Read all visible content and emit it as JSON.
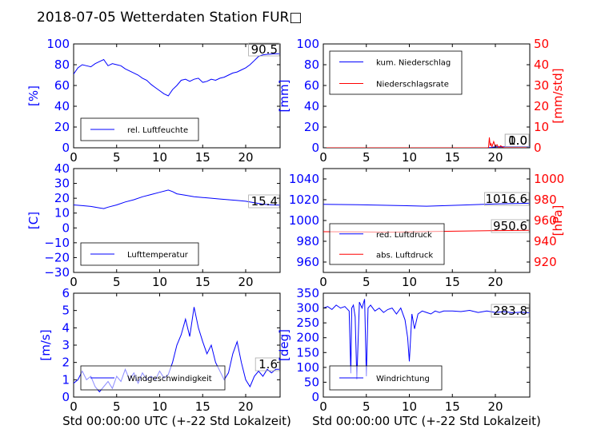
{
  "title": "2018-07-05 Wetterdaten Station FUR□",
  "xlabel": "Std 00:00:00 UTC (+-22 Std Lokalzeit)",
  "colors": {
    "blue": "#0000ff",
    "red": "#ff0000",
    "black": "#000000"
  },
  "chart_data": [
    {
      "type": "line",
      "panel": "humidity",
      "ylabel": "[%]",
      "xlim": [
        0,
        24
      ],
      "ylim": [
        0,
        100
      ],
      "xticks": [
        "0",
        "5",
        "10",
        "15",
        "20"
      ],
      "yticks": [
        "0",
        "20",
        "40",
        "60",
        "80",
        "100"
      ],
      "last_value": "90.5",
      "legend_placement": "lower-left",
      "series": [
        {
          "name": "rel. Luftfeuchte",
          "color": "#0000ff",
          "x": [
            0,
            0.5,
            1,
            1.5,
            2,
            2.5,
            3,
            3.5,
            4,
            4.5,
            5,
            5.5,
            6,
            6.5,
            7,
            7.5,
            8,
            8.5,
            9,
            9.5,
            10,
            10.5,
            11,
            11.5,
            12,
            12.5,
            13,
            13.5,
            14,
            14.5,
            15,
            15.5,
            16,
            16.5,
            17,
            17.5,
            18,
            18.5,
            19,
            19.5,
            20,
            20.5,
            21,
            21.5,
            22,
            22.5,
            23,
            23.5,
            24
          ],
          "y": [
            71,
            77,
            80,
            79,
            78,
            81,
            83,
            85,
            79,
            81,
            80,
            79,
            76,
            74,
            72,
            70,
            67,
            65,
            61,
            58,
            55,
            52,
            50,
            56,
            60,
            65,
            66,
            64,
            66,
            67,
            63,
            64,
            66,
            65,
            67,
            68,
            70,
            72,
            73,
            75,
            77,
            80,
            84,
            88,
            89.5,
            90,
            90.3,
            90.5,
            90.5
          ]
        }
      ]
    },
    {
      "type": "line",
      "panel": "precipitation",
      "ylabel": "[mm]",
      "ylabel_right": "[mm/std]",
      "xlim": [
        0,
        24
      ],
      "ylim": [
        0,
        100
      ],
      "ylim_right": [
        0,
        50
      ],
      "xticks": [
        "0",
        "5",
        "10",
        "15",
        "20"
      ],
      "yticks": [
        "0",
        "20",
        "40",
        "60",
        "80",
        "100"
      ],
      "yticks_right": [
        "0",
        "10",
        "20",
        "30",
        "40",
        "50"
      ],
      "last_values": [
        "0.0",
        "1.0"
      ],
      "legend_placement": "upper-left",
      "series": [
        {
          "name": "kum. Niederschlag",
          "color": "#0000ff",
          "axis": "left",
          "x": [
            0,
            19,
            19.5,
            20,
            24
          ],
          "y": [
            0,
            0,
            0.4,
            0.9,
            1.0
          ]
        },
        {
          "name": "Niederschlagsrate",
          "color": "#ff0000",
          "axis": "right",
          "x": [
            0,
            19.2,
            19.3,
            19.4,
            19.5,
            19.6,
            19.8,
            20.0,
            20.2,
            20.4,
            20.6,
            21,
            22,
            23,
            24
          ],
          "y": [
            0,
            0,
            5,
            1,
            2,
            0.5,
            3,
            0.5,
            1.5,
            0,
            1.0,
            0,
            0,
            0,
            0
          ]
        }
      ]
    },
    {
      "type": "line",
      "panel": "temperature",
      "ylabel": "[C]",
      "xlim": [
        0,
        24
      ],
      "ylim": [
        -30,
        40
      ],
      "xticks": [
        "0",
        "5",
        "10",
        "15",
        "20"
      ],
      "yticks": [
        "−30",
        "−20",
        "−10",
        "0",
        "10",
        "20",
        "30",
        "40"
      ],
      "last_value": "15.4",
      "legend_placement": "lower-left",
      "series": [
        {
          "name": "Lufttemperatur",
          "color": "#0000ff",
          "x": [
            0,
            1,
            2,
            3,
            3.5,
            4,
            5,
            6,
            7,
            8,
            9,
            10,
            11,
            11.5,
            12,
            13,
            14,
            15,
            16,
            17,
            18,
            19,
            20,
            21,
            22,
            23,
            24
          ],
          "y": [
            15.5,
            15,
            14.5,
            13.5,
            13,
            14,
            15.5,
            17.5,
            19,
            21,
            22.5,
            24,
            25.5,
            24.5,
            23,
            22,
            21,
            20.5,
            20,
            19.5,
            19,
            18.5,
            18,
            17,
            16,
            15.5,
            15.4
          ]
        }
      ]
    },
    {
      "type": "line",
      "panel": "pressure",
      "ylabel_right": "[hPa]",
      "xlim": [
        0,
        24
      ],
      "ylim": [
        950,
        1050
      ],
      "ylim_right": [
        910,
        1010
      ],
      "xticks": [
        "0",
        "5",
        "10",
        "15",
        "20"
      ],
      "yticks": [
        "960",
        "980",
        "1000",
        "1020",
        "1040"
      ],
      "yticks_right": [
        "920",
        "940",
        "960",
        "980",
        "1000"
      ],
      "last_values": [
        "1016.6",
        "950.6"
      ],
      "legend_placement": "lower-left",
      "series": [
        {
          "name": "red. Luftdruck",
          "color": "#0000ff",
          "axis": "left",
          "x": [
            0,
            4,
            8,
            12,
            16,
            20,
            24
          ],
          "y": [
            1015.5,
            1015.2,
            1014.5,
            1013.8,
            1014.8,
            1016,
            1016.6
          ]
        },
        {
          "name": "abs. Luftdruck",
          "color": "#ff0000",
          "axis": "right",
          "x": [
            0,
            4,
            8,
            12,
            16,
            20,
            24
          ],
          "y": [
            949.2,
            949.0,
            948.8,
            949.3,
            949.8,
            950.3,
            950.6
          ]
        }
      ]
    },
    {
      "type": "line",
      "panel": "windspeed",
      "ylabel": "[m/s]",
      "xlim": [
        0,
        24
      ],
      "ylim": [
        0,
        6
      ],
      "xticks": [
        "0",
        "5",
        "10",
        "15",
        "20"
      ],
      "yticks": [
        "0",
        "1",
        "2",
        "3",
        "4",
        "5",
        "6"
      ],
      "last_value": "1.6",
      "legend_placement": "lower-left",
      "series": [
        {
          "name": "Windgeschwindigkeit",
          "color": "#0000ff",
          "x": [
            0,
            0.5,
            1,
            1.5,
            2,
            2.5,
            3,
            3.5,
            4,
            4.5,
            5,
            5.5,
            6,
            6.5,
            7,
            7.5,
            8,
            8.5,
            9,
            9.5,
            10,
            10.5,
            11,
            11.5,
            12,
            12.5,
            13,
            13.5,
            14,
            14.5,
            15,
            15.5,
            16,
            16.5,
            17,
            17.5,
            18,
            18.5,
            19,
            19.5,
            20,
            20.5,
            21,
            21.5,
            22,
            22.5,
            23,
            23.5,
            24
          ],
          "y": [
            0.8,
            1.0,
            1.5,
            1.0,
            1.2,
            0.6,
            0.3,
            0.6,
            0.9,
            0.5,
            1.2,
            0.9,
            1.6,
            1.0,
            1.4,
            0.8,
            1.4,
            1.0,
            1.2,
            1.0,
            1.5,
            1.1,
            1.3,
            2.0,
            3.0,
            3.6,
            4.5,
            3.5,
            5.2,
            4.0,
            3.2,
            2.5,
            3.0,
            2.0,
            1.5,
            1.0,
            1.4,
            2.5,
            3.2,
            2.0,
            1.0,
            0.6,
            1.2,
            1.5,
            1.2,
            1.6,
            1.4,
            1.6,
            1.6
          ]
        }
      ]
    },
    {
      "type": "line",
      "panel": "winddirection",
      "ylabel": "[deg]",
      "xlim": [
        0,
        24
      ],
      "ylim": [
        0,
        350
      ],
      "xticks": [
        "0",
        "5",
        "10",
        "15",
        "20"
      ],
      "yticks": [
        "0",
        "50",
        "100",
        "150",
        "200",
        "250",
        "300",
        "350"
      ],
      "last_value": "283.8",
      "legend_placement": "lower-left",
      "series": [
        {
          "name": "Windrichtung",
          "color": "#0000ff",
          "x": [
            0,
            0.5,
            1,
            1.5,
            2,
            2.5,
            3,
            3.2,
            3.3,
            3.5,
            3.7,
            3.9,
            4.2,
            4.5,
            4.8,
            5.0,
            5.2,
            5.5,
            6,
            6.5,
            7,
            7.5,
            8,
            8.5,
            9,
            9.5,
            9.8,
            10.0,
            10.3,
            10.6,
            11,
            11.5,
            12,
            12.5,
            13,
            13.5,
            14,
            15,
            16,
            17,
            18,
            19,
            20,
            21,
            22,
            23,
            24
          ],
          "y": [
            300,
            305,
            295,
            310,
            300,
            305,
            290,
            80,
            300,
            310,
            270,
            60,
            320,
            300,
            330,
            70,
            300,
            310,
            290,
            300,
            285,
            295,
            300,
            280,
            300,
            260,
            200,
            120,
            280,
            230,
            280,
            290,
            285,
            280,
            290,
            285,
            290,
            290,
            288,
            292,
            285,
            290,
            285,
            288,
            284,
            286,
            283.8
          ]
        }
      ]
    }
  ]
}
